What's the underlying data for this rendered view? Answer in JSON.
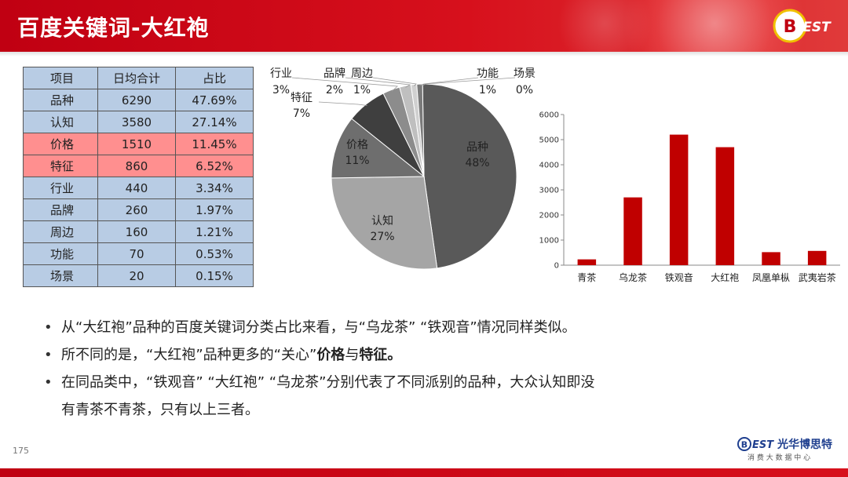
{
  "header": {
    "title": "百度关键词-大红袍",
    "logo_text": "BEST"
  },
  "table": {
    "headers": [
      "项目",
      "日均合计",
      "占比"
    ],
    "rows": [
      {
        "item": "品种",
        "daily_total": "6290",
        "share": "47.69%",
        "highlight": false
      },
      {
        "item": "认知",
        "daily_total": "3580",
        "share": "27.14%",
        "highlight": false
      },
      {
        "item": "价格",
        "daily_total": "1510",
        "share": "11.45%",
        "highlight": true
      },
      {
        "item": "特征",
        "daily_total": "860",
        "share": "6.52%",
        "highlight": true
      },
      {
        "item": "行业",
        "daily_total": "440",
        "share": "3.34%",
        "highlight": false
      },
      {
        "item": "品牌",
        "daily_total": "260",
        "share": "1.97%",
        "highlight": false
      },
      {
        "item": "周边",
        "daily_total": "160",
        "share": "1.21%",
        "highlight": false
      },
      {
        "item": "功能",
        "daily_total": "70",
        "share": "0.53%",
        "highlight": false
      },
      {
        "item": "场景",
        "daily_total": "20",
        "share": "0.15%",
        "highlight": false
      }
    ]
  },
  "chart_data": [
    {
      "type": "pie",
      "title": "",
      "slices": [
        {
          "label": "品种",
          "value": 48,
          "display": "48%",
          "color": "#595959"
        },
        {
          "label": "认知",
          "value": 27,
          "display": "27%",
          "color": "#a5a5a5"
        },
        {
          "label": "价格",
          "value": 11,
          "display": "11%",
          "color": "#6e6e6e"
        },
        {
          "label": "特征",
          "value": 7,
          "display": "7%",
          "color": "#3f3f3f"
        },
        {
          "label": "行业",
          "value": 3,
          "display": "3%",
          "color": "#8c8c8c"
        },
        {
          "label": "品牌",
          "value": 2,
          "display": "2%",
          "color": "#bfbfbf"
        },
        {
          "label": "周边",
          "value": 1,
          "display": "1%",
          "color": "#d0d0d0"
        },
        {
          "label": "功能",
          "value": 1,
          "display": "1%",
          "color": "#7a7a7a"
        },
        {
          "label": "场景",
          "value": 0,
          "display": "0%",
          "color": "#e0e0e0"
        }
      ]
    },
    {
      "type": "bar",
      "title": "",
      "categories": [
        "青茶",
        "乌龙茶",
        "铁观音",
        "大红袍",
        "凤凰单枞",
        "武夷岩茶"
      ],
      "values": [
        230,
        2700,
        5200,
        4700,
        520,
        570
      ],
      "ylim": [
        0,
        6000
      ],
      "yticks": [
        0,
        1000,
        2000,
        3000,
        4000,
        5000,
        6000
      ],
      "color": "#c00000",
      "xlabel": "",
      "ylabel": ""
    }
  ],
  "bullets": [
    {
      "text": "从“大红袍”品种的百度关键词分类占比来看，与“乌龙茶” “铁观音”情况同样类似。"
    },
    {
      "pre": "所不同的是，“大红袍”品种更多的“关心”",
      "bold1": "价格",
      "mid": "与",
      "bold2": "特征",
      "post": "。"
    },
    {
      "line1": "在同品类中，“铁观音” “大红袍” “乌龙茶”分别代表了不同派别的品种，大众认知即没",
      "line2": "有青茶不青茶，只有以上三者。"
    }
  ],
  "footer": {
    "page_number": "175",
    "brand_name": "光华博思特",
    "brand_sub": "消 费 大 数 据 中 心"
  }
}
